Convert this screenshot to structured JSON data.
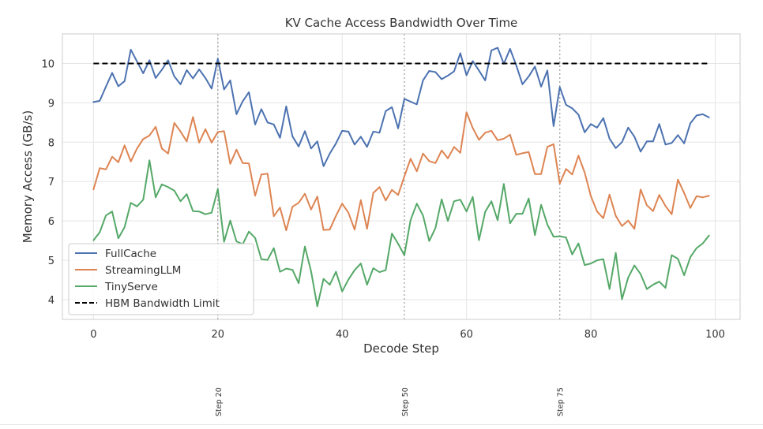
{
  "chart_data": {
    "type": "line",
    "title": "KV Cache Access Bandwidth Over Time",
    "xlabel": "Decode Step",
    "ylabel": "Memory Access (GB/s)",
    "xlim": [
      -5,
      104
    ],
    "ylim": [
      3.5,
      10.75
    ],
    "xticks": [
      0,
      20,
      40,
      60,
      80,
      100
    ],
    "yticks": [
      4,
      5,
      6,
      7,
      8,
      9,
      10
    ],
    "grid": true,
    "legend_position": "lower-left",
    "series": [
      {
        "name": "FullCache",
        "color": "#4c72b0",
        "values": [
          9.02,
          9.05,
          9.41,
          9.76,
          9.42,
          9.55,
          10.35,
          10.05,
          9.75,
          10.08,
          9.63,
          9.84,
          10.08,
          9.67,
          9.47,
          9.83,
          9.62,
          9.85,
          9.63,
          9.36,
          10.12,
          9.34,
          9.57,
          8.71,
          9.04,
          9.27,
          8.45,
          8.84,
          8.5,
          8.45,
          8.11,
          8.91,
          8.15,
          7.89,
          8.28,
          7.84,
          8.02,
          7.39,
          7.71,
          7.97,
          8.29,
          8.27,
          7.94,
          8.14,
          7.88,
          8.27,
          8.24,
          8.79,
          8.89,
          8.35,
          9.1,
          9.03,
          8.96,
          9.57,
          9.81,
          9.78,
          9.6,
          9.69,
          9.8,
          10.26,
          9.7,
          10.06,
          9.82,
          9.57,
          10.33,
          10.4,
          9.99,
          10.37,
          9.95,
          9.47,
          9.67,
          9.92,
          9.41,
          9.82,
          8.41,
          9.4,
          8.95,
          8.86,
          8.7,
          8.25,
          8.46,
          8.37,
          8.61,
          8.09,
          7.85,
          8.0,
          8.37,
          8.14,
          7.76,
          8.02,
          8.02,
          8.46,
          7.94,
          7.98,
          8.18,
          7.97,
          8.48,
          8.68,
          8.71,
          8.63
        ]
      },
      {
        "name": "StreamingLLM",
        "color": "#dd8452",
        "values": [
          6.8,
          7.34,
          7.31,
          7.63,
          7.49,
          7.92,
          7.51,
          7.84,
          8.08,
          8.17,
          8.39,
          7.84,
          7.71,
          8.49,
          8.27,
          8.02,
          8.64,
          7.99,
          8.33,
          7.99,
          8.26,
          8.28,
          7.45,
          7.81,
          7.47,
          7.46,
          6.64,
          7.18,
          7.2,
          6.12,
          6.34,
          5.76,
          6.36,
          6.46,
          6.69,
          6.29,
          6.62,
          5.77,
          5.78,
          6.13,
          6.44,
          6.21,
          5.78,
          6.53,
          5.8,
          6.71,
          6.86,
          6.52,
          6.79,
          6.66,
          7.13,
          7.58,
          7.26,
          7.71,
          7.52,
          7.47,
          7.79,
          7.59,
          7.88,
          7.73,
          8.76,
          8.36,
          8.06,
          8.24,
          8.29,
          8.05,
          8.09,
          8.19,
          7.68,
          7.72,
          7.75,
          7.19,
          7.19,
          7.88,
          7.95,
          6.95,
          7.32,
          7.18,
          7.66,
          7.23,
          6.63,
          6.24,
          6.07,
          6.67,
          6.13,
          5.87,
          6.01,
          5.8,
          6.8,
          6.4,
          6.25,
          6.66,
          6.38,
          6.17,
          7.05,
          6.71,
          6.33,
          6.63,
          6.6,
          6.64
        ]
      },
      {
        "name": "TinyServe",
        "color": "#55a868",
        "values": [
          5.51,
          5.71,
          6.14,
          6.24,
          5.56,
          5.84,
          6.46,
          6.37,
          6.54,
          7.54,
          6.6,
          6.93,
          6.86,
          6.77,
          6.5,
          6.68,
          6.25,
          6.24,
          6.17,
          6.21,
          6.81,
          5.47,
          6.01,
          5.48,
          5.41,
          5.73,
          5.57,
          5.03,
          5.01,
          5.31,
          4.71,
          4.79,
          4.76,
          4.42,
          5.35,
          4.72,
          3.83,
          4.53,
          4.38,
          4.71,
          4.21,
          4.51,
          4.75,
          4.92,
          4.38,
          4.8,
          4.7,
          4.75,
          5.68,
          5.42,
          5.13,
          6.02,
          6.44,
          6.14,
          5.49,
          5.82,
          6.55,
          6.0,
          6.5,
          6.54,
          6.24,
          6.61,
          5.51,
          6.23,
          6.5,
          6.02,
          6.94,
          5.94,
          6.18,
          6.18,
          6.57,
          5.64,
          6.41,
          5.91,
          5.6,
          5.61,
          5.58,
          5.15,
          5.43,
          4.88,
          4.92,
          5.0,
          5.03,
          4.27,
          5.19,
          4.01,
          4.56,
          4.87,
          4.65,
          4.27,
          4.38,
          4.46,
          4.3,
          5.13,
          5.04,
          4.62,
          5.08,
          5.31,
          5.43,
          5.63
        ]
      },
      {
        "name": "HBM Bandwidth Limit",
        "color": "#000000",
        "dashed": true,
        "x": [
          0,
          99
        ],
        "values": [
          10,
          10
        ]
      }
    ],
    "annotations": [
      {
        "x": 20,
        "label": "Step 20"
      },
      {
        "x": 50,
        "label": "Step 50"
      },
      {
        "x": 75,
        "label": "Step 75"
      }
    ]
  }
}
